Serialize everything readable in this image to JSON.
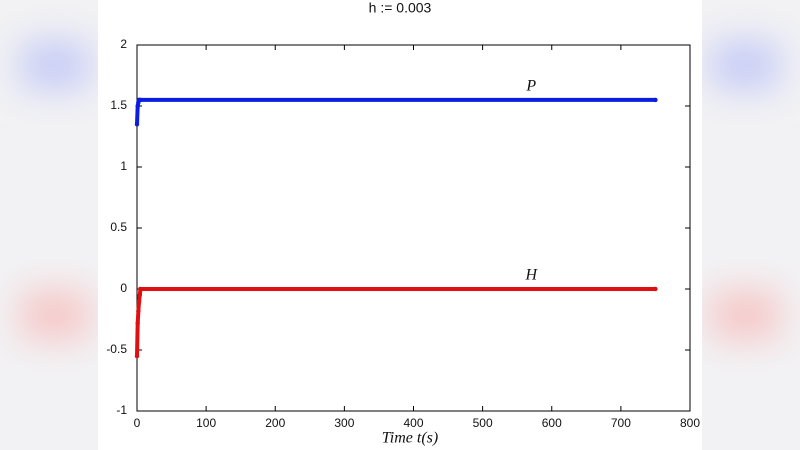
{
  "chart_data": {
    "type": "line",
    "title": "h := 0.003",
    "xlabel": "Time t(s)",
    "x": [
      0,
      1,
      2,
      3,
      4,
      5,
      750
    ],
    "series": [
      {
        "name": "P",
        "color": "#0a1ee0",
        "values": [
          1.35,
          1.5,
          1.53,
          1.55,
          1.55,
          1.55,
          1.55
        ]
      },
      {
        "name": "H",
        "color": "#e01010",
        "values": [
          -0.55,
          -0.28,
          -0.18,
          -0.1,
          -0.05,
          0,
          0
        ]
      }
    ],
    "xlim": [
      0,
      800
    ],
    "xticks": [
      0,
      100,
      200,
      300,
      400,
      500,
      600,
      700,
      800
    ],
    "ylim": [
      -1,
      2
    ],
    "yticks": [
      -1,
      -0.5,
      0,
      0.5,
      1,
      1.5,
      2
    ],
    "grid": false
  }
}
